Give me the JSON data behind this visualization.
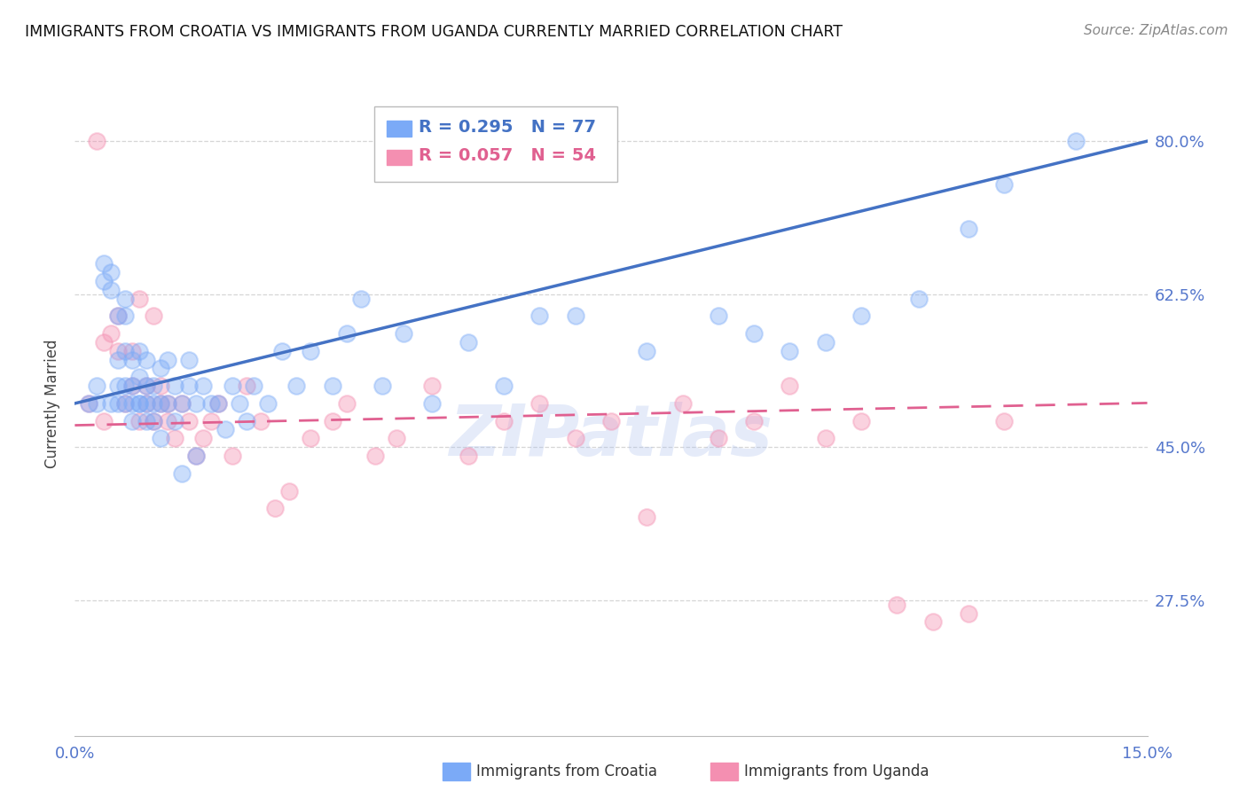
{
  "title": "IMMIGRANTS FROM CROATIA VS IMMIGRANTS FROM UGANDA CURRENTLY MARRIED CORRELATION CHART",
  "source": "Source: ZipAtlas.com",
  "ylabel_label": "Currently Married",
  "xlim": [
    0.0,
    0.15
  ],
  "ylim": [
    0.12,
    0.88
  ],
  "xticks": [
    0.0,
    0.025,
    0.05,
    0.075,
    0.1,
    0.125,
    0.15
  ],
  "xtick_labels": [
    "0.0%",
    "",
    "",
    "",
    "",
    "",
    "15.0%"
  ],
  "ytick_positions": [
    0.275,
    0.45,
    0.625,
    0.8
  ],
  "ytick_labels": [
    "27.5%",
    "45.0%",
    "62.5%",
    "80.0%"
  ],
  "grid_color": "#cccccc",
  "background_color": "#ffffff",
  "croatia_color": "#7baaf7",
  "uganda_color": "#f48fb1",
  "croatia_R": 0.295,
  "croatia_N": 77,
  "uganda_R": 0.057,
  "uganda_N": 54,
  "croatia_line_color": "#4472c4",
  "uganda_line_color": "#e06090",
  "watermark": "ZIPatlas",
  "croatia_x": [
    0.002,
    0.003,
    0.003,
    0.004,
    0.004,
    0.005,
    0.005,
    0.005,
    0.006,
    0.006,
    0.006,
    0.006,
    0.007,
    0.007,
    0.007,
    0.007,
    0.007,
    0.008,
    0.008,
    0.008,
    0.008,
    0.009,
    0.009,
    0.009,
    0.009,
    0.01,
    0.01,
    0.01,
    0.01,
    0.011,
    0.011,
    0.011,
    0.012,
    0.012,
    0.012,
    0.013,
    0.013,
    0.014,
    0.014,
    0.015,
    0.015,
    0.016,
    0.016,
    0.017,
    0.017,
    0.018,
    0.019,
    0.02,
    0.021,
    0.022,
    0.023,
    0.024,
    0.025,
    0.027,
    0.029,
    0.031,
    0.033,
    0.036,
    0.038,
    0.04,
    0.043,
    0.046,
    0.05,
    0.055,
    0.06,
    0.065,
    0.07,
    0.08,
    0.09,
    0.095,
    0.1,
    0.105,
    0.11,
    0.118,
    0.125,
    0.13,
    0.14
  ],
  "croatia_y": [
    0.5,
    0.5,
    0.52,
    0.64,
    0.66,
    0.63,
    0.65,
    0.5,
    0.52,
    0.5,
    0.55,
    0.6,
    0.5,
    0.52,
    0.56,
    0.6,
    0.62,
    0.5,
    0.48,
    0.52,
    0.55,
    0.5,
    0.53,
    0.56,
    0.5,
    0.48,
    0.5,
    0.55,
    0.52,
    0.5,
    0.48,
    0.52,
    0.5,
    0.46,
    0.54,
    0.5,
    0.55,
    0.52,
    0.48,
    0.5,
    0.42,
    0.55,
    0.52,
    0.5,
    0.44,
    0.52,
    0.5,
    0.5,
    0.47,
    0.52,
    0.5,
    0.48,
    0.52,
    0.5,
    0.56,
    0.52,
    0.56,
    0.52,
    0.58,
    0.62,
    0.52,
    0.58,
    0.5,
    0.57,
    0.52,
    0.6,
    0.6,
    0.56,
    0.6,
    0.58,
    0.56,
    0.57,
    0.6,
    0.62,
    0.7,
    0.75,
    0.8
  ],
  "uganda_x": [
    0.002,
    0.003,
    0.004,
    0.004,
    0.005,
    0.006,
    0.006,
    0.007,
    0.008,
    0.008,
    0.009,
    0.009,
    0.01,
    0.01,
    0.011,
    0.011,
    0.012,
    0.012,
    0.013,
    0.013,
    0.014,
    0.015,
    0.016,
    0.017,
    0.018,
    0.019,
    0.02,
    0.022,
    0.024,
    0.026,
    0.028,
    0.03,
    0.033,
    0.036,
    0.038,
    0.042,
    0.045,
    0.05,
    0.055,
    0.06,
    0.065,
    0.07,
    0.075,
    0.08,
    0.085,
    0.09,
    0.095,
    0.1,
    0.105,
    0.11,
    0.115,
    0.12,
    0.125,
    0.13
  ],
  "uganda_y": [
    0.5,
    0.8,
    0.48,
    0.57,
    0.58,
    0.6,
    0.56,
    0.5,
    0.52,
    0.56,
    0.48,
    0.62,
    0.5,
    0.52,
    0.48,
    0.6,
    0.5,
    0.52,
    0.5,
    0.48,
    0.46,
    0.5,
    0.48,
    0.44,
    0.46,
    0.48,
    0.5,
    0.44,
    0.52,
    0.48,
    0.38,
    0.4,
    0.46,
    0.48,
    0.5,
    0.44,
    0.46,
    0.52,
    0.44,
    0.48,
    0.5,
    0.46,
    0.48,
    0.37,
    0.5,
    0.46,
    0.48,
    0.52,
    0.46,
    0.48,
    0.27,
    0.25,
    0.26,
    0.48
  ]
}
